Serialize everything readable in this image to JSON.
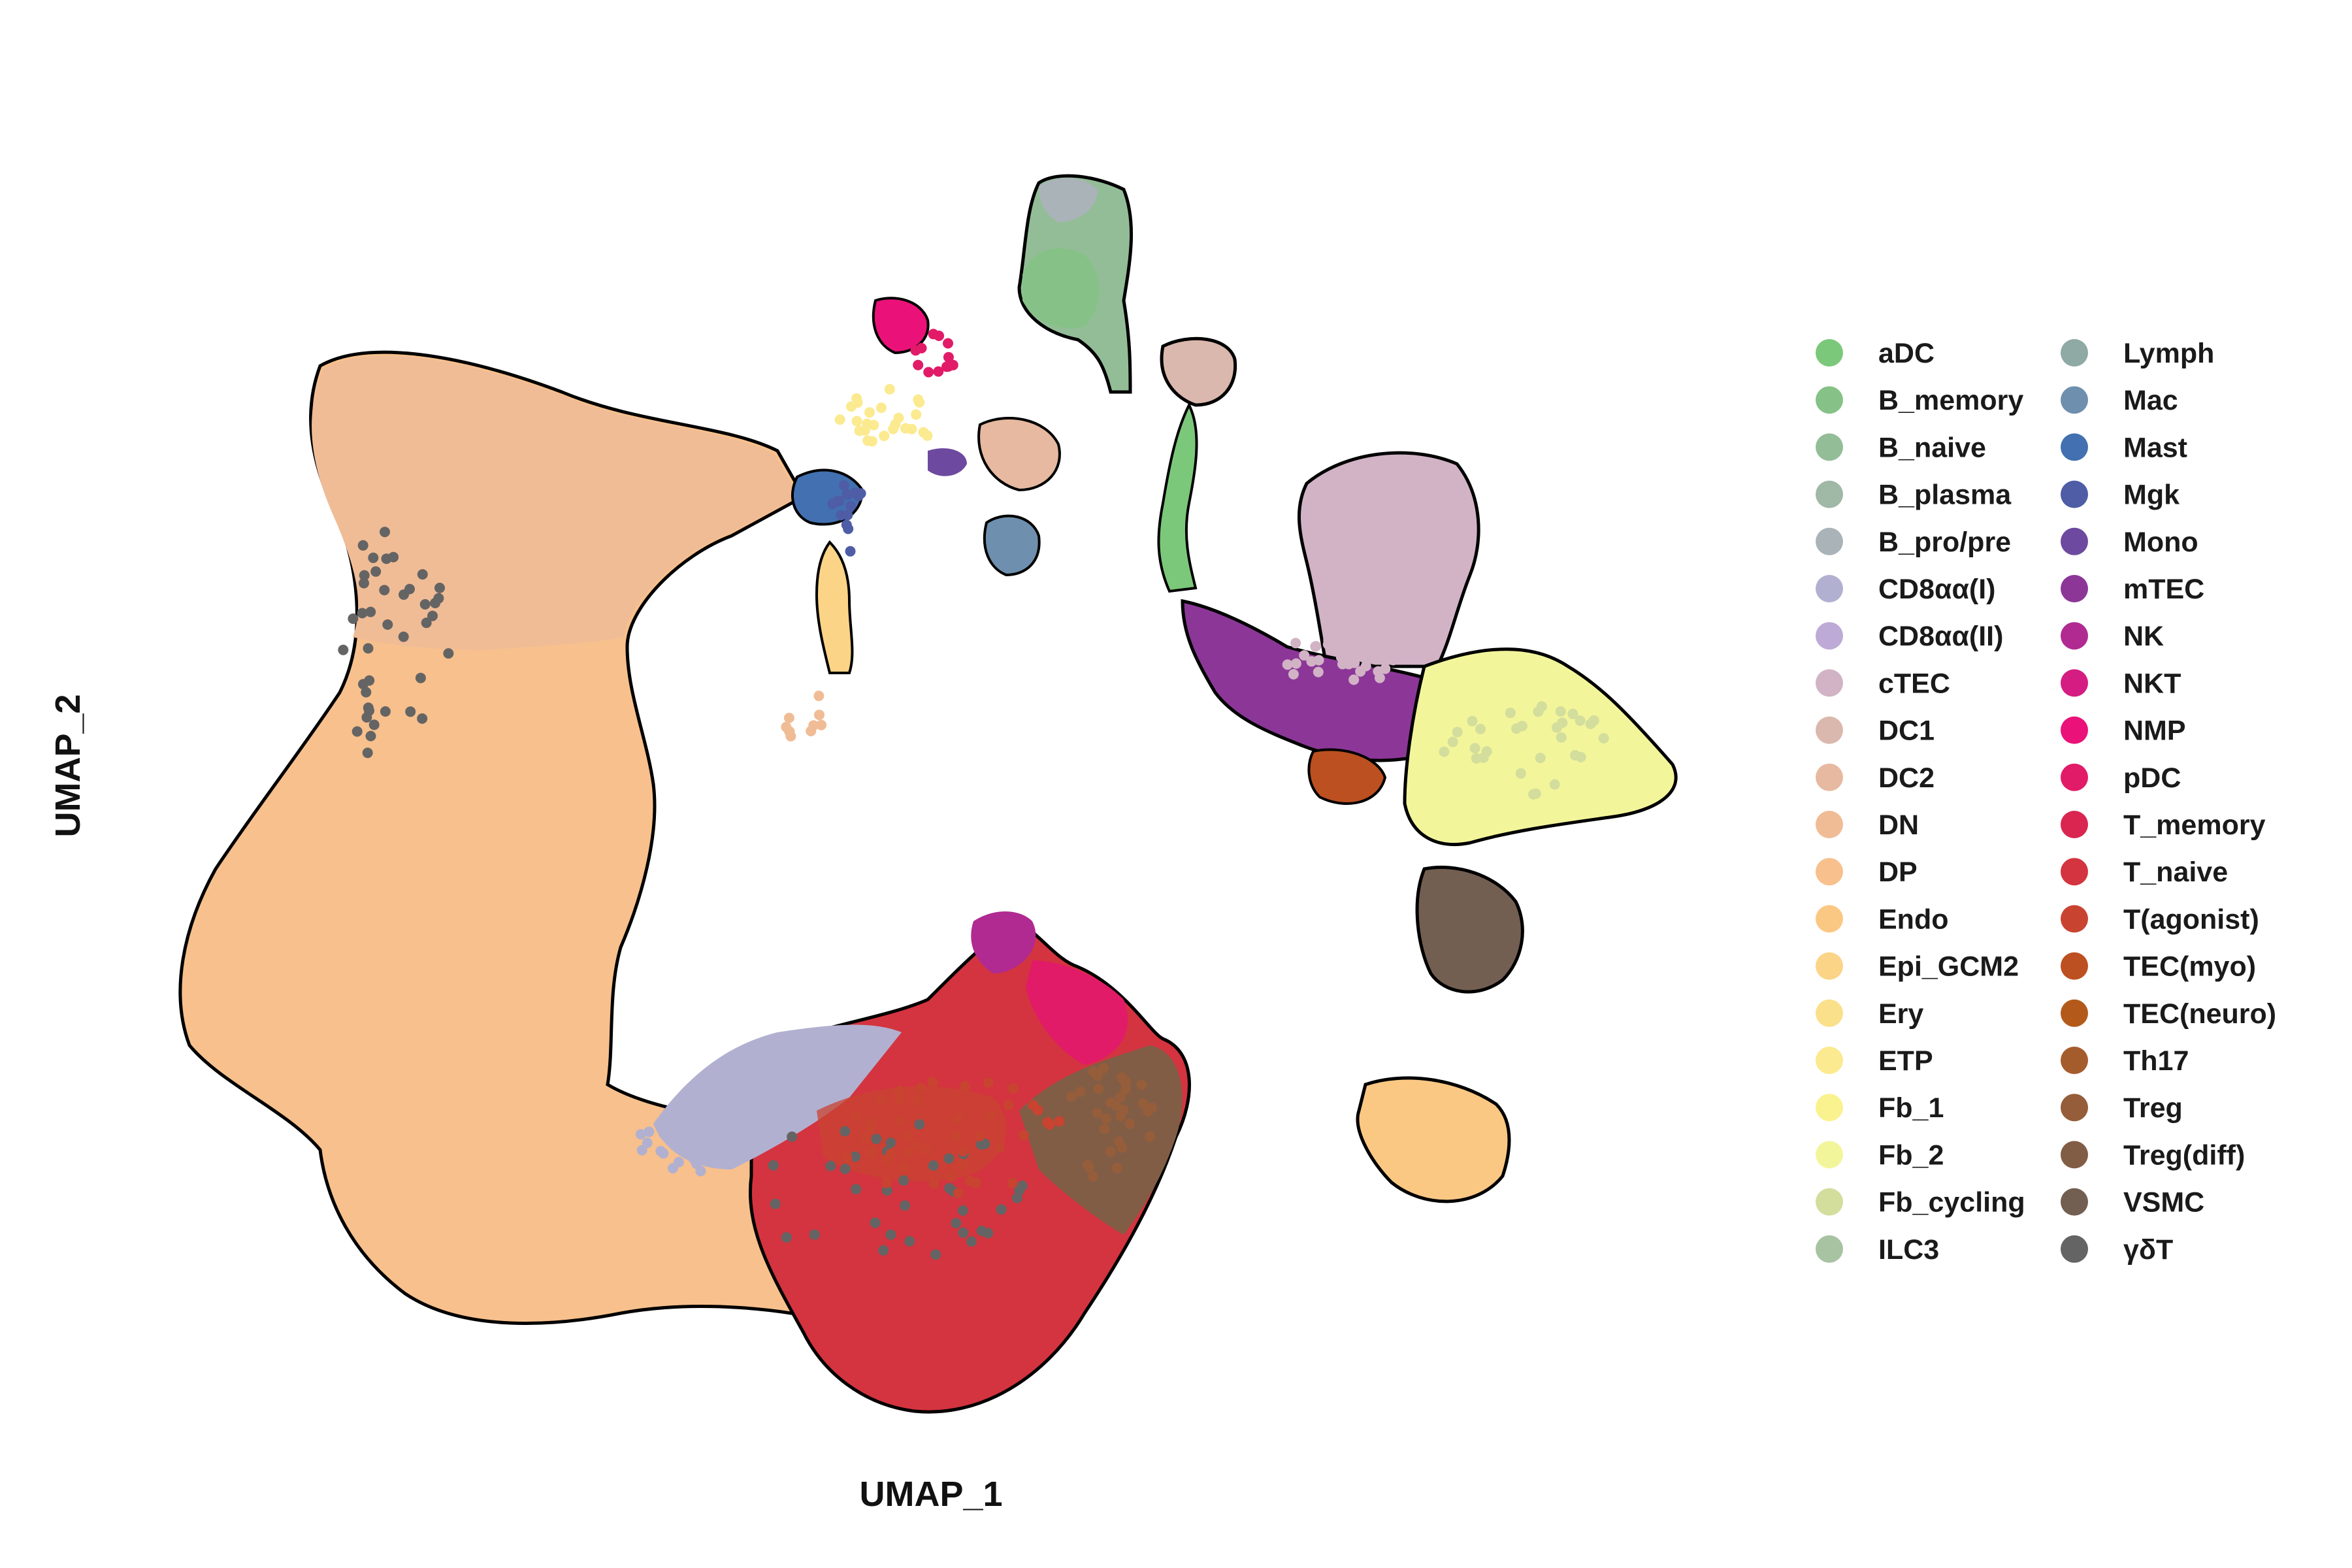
{
  "chart_data": {
    "type": "scatter",
    "title": "",
    "xlabel": "UMAP_1",
    "ylabel": "UMAP_2",
    "grid": false,
    "axes_visible": false,
    "legend_position": "right",
    "legend_columns": 2,
    "point_outline": "black",
    "xlim": [
      -10,
      10
    ],
    "ylim": [
      -10,
      10
    ],
    "series": [
      {
        "name": "aDC",
        "color": "#7bc87a"
      },
      {
        "name": "B_memory",
        "color": "#86c287"
      },
      {
        "name": "B_naive",
        "color": "#93bd97"
      },
      {
        "name": "B_plasma",
        "color": "#a0b8a6"
      },
      {
        "name": "B_pro/pre",
        "color": "#a9b3b8"
      },
      {
        "name": "CD8αα(I)",
        "color": "#b2b0d0"
      },
      {
        "name": "CD8αα(II)",
        "color": "#bdaad6"
      },
      {
        "name": "cTEC",
        "color": "#d2b3c6"
      },
      {
        "name": "DC1",
        "color": "#dbb8ad"
      },
      {
        "name": "DC2",
        "color": "#e6b9a0"
      },
      {
        "name": "DN",
        "color": "#f0bc96"
      },
      {
        "name": "DP",
        "color": "#f7c08c"
      },
      {
        "name": "Endo",
        "color": "#fbc884"
      },
      {
        "name": "Epi_GCM2",
        "color": "#fbd487"
      },
      {
        "name": "Ery",
        "color": "#fbe08b"
      },
      {
        "name": "ETP",
        "color": "#fbea8f"
      },
      {
        "name": "Fb_1",
        "color": "#faf28f"
      },
      {
        "name": "Fb_2",
        "color": "#f3f59b"
      },
      {
        "name": "Fb_cycling",
        "color": "#d3dd9c"
      },
      {
        "name": "ILC3",
        "color": "#a8c3a2"
      },
      {
        "name": "Lymph",
        "color": "#8fa9a5"
      },
      {
        "name": "Mac",
        "color": "#6f8fae"
      },
      {
        "name": "Mast",
        "color": "#4270b0"
      },
      {
        "name": "Mgk",
        "color": "#4e5da6"
      },
      {
        "name": "Mono",
        "color": "#6d4a9f"
      },
      {
        "name": "mTEC",
        "color": "#8c3798"
      },
      {
        "name": "NK",
        "color": "#b02a91"
      },
      {
        "name": "NKT",
        "color": "#d41c82"
      },
      {
        "name": "NMP",
        "color": "#ea1278"
      },
      {
        "name": "pDC",
        "color": "#e11b68"
      },
      {
        "name": "T_memory",
        "color": "#d9254f"
      },
      {
        "name": "T_naive",
        "color": "#d3343f"
      },
      {
        "name": "T(agonist)",
        "color": "#c94331"
      },
      {
        "name": "TEC(myo)",
        "color": "#bc5020"
      },
      {
        "name": "TEC(neuro)",
        "color": "#b35a1a"
      },
      {
        "name": "Th17",
        "color": "#a55c2c"
      },
      {
        "name": "Treg",
        "color": "#955d3a"
      },
      {
        "name": "Treg(diff)",
        "color": "#815d46"
      },
      {
        "name": "VSMC",
        "color": "#735f52"
      },
      {
        "name": "γδT",
        "color": "#646464"
      }
    ]
  }
}
